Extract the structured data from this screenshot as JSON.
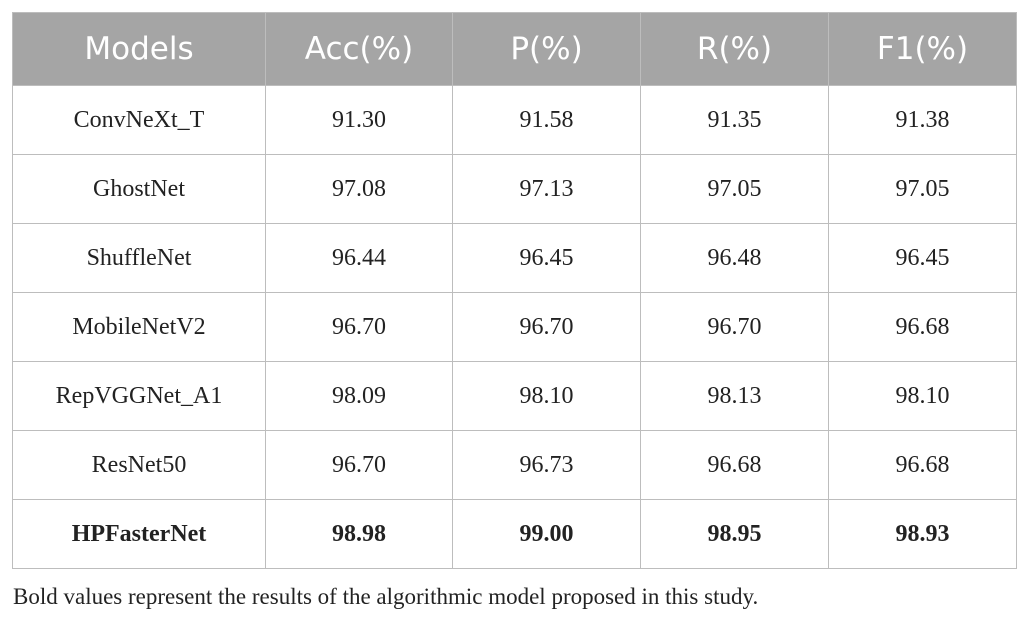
{
  "table": {
    "header": [
      "Models",
      "Acc(%)",
      "P(%)",
      "R(%)",
      "F1(%)"
    ],
    "rows": [
      [
        "ConvNeXt_T",
        "91.30",
        "91.58",
        "91.35",
        "91.38"
      ],
      [
        "GhostNet",
        "97.08",
        "97.13",
        "97.05",
        "97.05"
      ],
      [
        "ShuffleNet",
        "96.44",
        "96.45",
        "96.48",
        "96.45"
      ],
      [
        "MobileNetV2",
        "96.70",
        "96.70",
        "96.70",
        "96.68"
      ],
      [
        "RepVGGNet_A1",
        "98.09",
        "98.10",
        "98.13",
        "98.10"
      ],
      [
        "ResNet50",
        "96.70",
        "96.73",
        "96.68",
        "96.68"
      ],
      [
        "HPFasterNet",
        "98.98",
        "99.00",
        "98.95",
        "98.93"
      ]
    ],
    "footnote": "Bold values represent the results of the algorithmic model proposed in this study."
  }
}
